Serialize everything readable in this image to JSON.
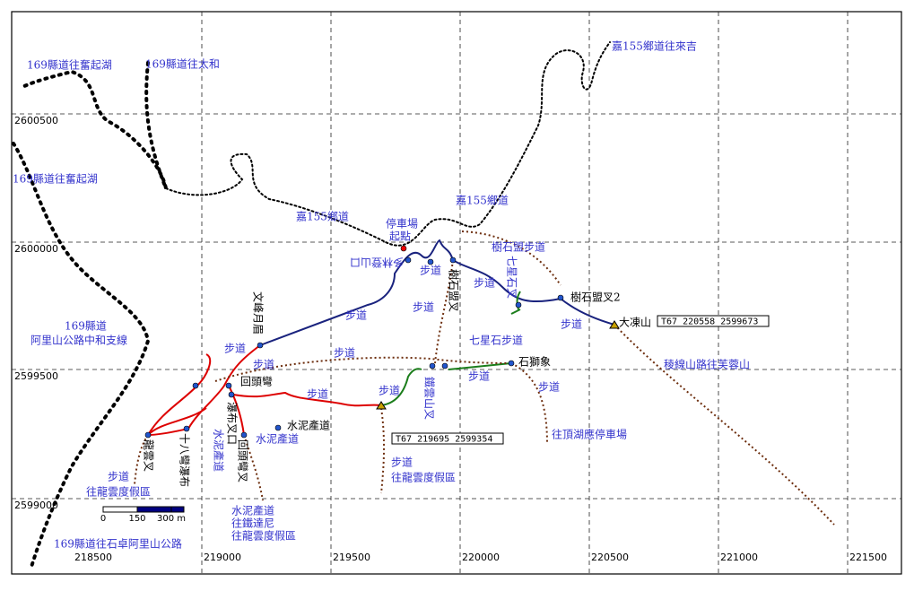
{
  "grid": {
    "eastings": [
      218500,
      219000,
      219500,
      220000,
      220500,
      221000,
      221500
    ],
    "northings": [
      2600500,
      2600000,
      2599500,
      2599000
    ]
  },
  "labels": [
    "169縣道往奮起湖",
    "169縣道往太和",
    "嘉155鄉道往來吉",
    "169縣道往奮起湖",
    "嘉155鄉道",
    "嘉155鄉道",
    "停車場",
    "起點",
    "多林登山口",
    "步道",
    "樹石盟步道",
    "樹石盟叉2",
    "大凍山",
    "步道",
    "步道",
    "稜線山路往芙蓉山",
    "七星石步道",
    "石獅象",
    "步道",
    "步道",
    "往頂湖應停車場",
    "步道",
    "步道",
    "步道",
    "步道",
    "步道",
    "169縣道",
    "阿里山公路中和支線",
    "步道",
    "步道",
    "水泥產道",
    "水泥產道",
    "回頭彎",
    "步道",
    "往龍雲度假區",
    "步道",
    "往龍雲度假區",
    "水泥產道",
    "往鐵達尼",
    "往龍雲度假區",
    "169縣道往石卓阿里山公路"
  ],
  "vertical_labels": [
    "文峰月眉",
    "樹石盟叉",
    "龍雲叉",
    "十八彎瀑布",
    "回頭彎叉",
    "瀑布叉口",
    "水泥產道",
    "鐵雲山叉",
    "七星石叉"
  ],
  "coord_boxes": [
    "T67   220558   2599673",
    "T67   219695   2599354"
  ],
  "scale": [
    "0",
    "150",
    "300 m"
  ]
}
